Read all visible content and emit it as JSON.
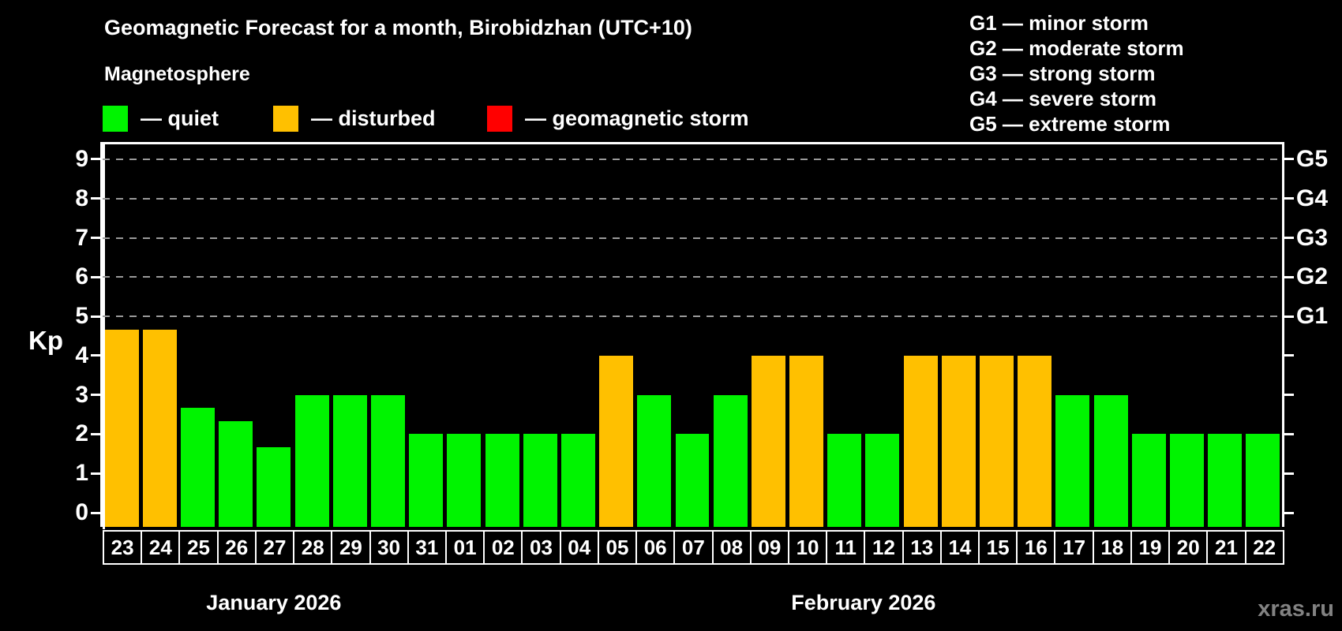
{
  "title": "Geomagnetic Forecast for a month, Birobidzhan (UTC+10)",
  "subtitle": "Magnetosphere",
  "legend": [
    {
      "label": "— quiet",
      "state": "quiet"
    },
    {
      "label": "— disturbed",
      "state": "disturbed"
    },
    {
      "label": "— geomagnetic storm",
      "state": "storm"
    }
  ],
  "g_legend": [
    "G1 — minor storm",
    "G2 — moderate storm",
    "G3 — strong storm",
    "G4 — severe storm",
    "G5 — extreme storm"
  ],
  "watermark": "xras.ru",
  "colors": {
    "quiet": "#00f400",
    "disturbed": "#ffc000",
    "storm": "#ff0000",
    "axis": "#ffffff",
    "grid": "#9a9a9a",
    "background": "#000000",
    "watermark_color": "#828282"
  },
  "chart_data": {
    "type": "bar",
    "title": "Geomagnetic Forecast for a month, Birobidzhan (UTC+10)",
    "subtitle": "Magnetosphere",
    "ylabel": "Kp",
    "ylim": [
      0,
      9
    ],
    "yticks": [
      0,
      1,
      2,
      3,
      4,
      5,
      6,
      7,
      8,
      9
    ],
    "gridlines_at": [
      5,
      6,
      7,
      8,
      9
    ],
    "grid": "horizontal dashed gray lines at Kp 5-9 only",
    "legend_position": "top-left",
    "right_axis": [
      {
        "kp": 5,
        "label": "G1"
      },
      {
        "kp": 6,
        "label": "G2"
      },
      {
        "kp": 7,
        "label": "G3"
      },
      {
        "kp": 8,
        "label": "G4"
      },
      {
        "kp": 9,
        "label": "G5"
      }
    ],
    "months": [
      {
        "label": "January 2026",
        "start_index": 0,
        "count": 9
      },
      {
        "label": "February 2026",
        "start_index": 9,
        "count": 22
      }
    ],
    "bars": [
      {
        "day": "23",
        "month": "January 2026",
        "kp": 4.67,
        "state": "disturbed"
      },
      {
        "day": "24",
        "month": "January 2026",
        "kp": 4.67,
        "state": "disturbed"
      },
      {
        "day": "25",
        "month": "January 2026",
        "kp": 2.67,
        "state": "quiet"
      },
      {
        "day": "26",
        "month": "January 2026",
        "kp": 2.33,
        "state": "quiet"
      },
      {
        "day": "27",
        "month": "January 2026",
        "kp": 1.67,
        "state": "quiet"
      },
      {
        "day": "28",
        "month": "January 2026",
        "kp": 3,
        "state": "quiet"
      },
      {
        "day": "29",
        "month": "January 2026",
        "kp": 3,
        "state": "quiet"
      },
      {
        "day": "30",
        "month": "January 2026",
        "kp": 3,
        "state": "quiet"
      },
      {
        "day": "31",
        "month": "January 2026",
        "kp": 2,
        "state": "quiet"
      },
      {
        "day": "01",
        "month": "February 2026",
        "kp": 2,
        "state": "quiet"
      },
      {
        "day": "02",
        "month": "February 2026",
        "kp": 2,
        "state": "quiet"
      },
      {
        "day": "03",
        "month": "February 2026",
        "kp": 2,
        "state": "quiet"
      },
      {
        "day": "04",
        "month": "February 2026",
        "kp": 2,
        "state": "quiet"
      },
      {
        "day": "05",
        "month": "February 2026",
        "kp": 4,
        "state": "disturbed"
      },
      {
        "day": "06",
        "month": "February 2026",
        "kp": 3,
        "state": "quiet"
      },
      {
        "day": "07",
        "month": "February 2026",
        "kp": 2,
        "state": "quiet"
      },
      {
        "day": "08",
        "month": "February 2026",
        "kp": 3,
        "state": "quiet"
      },
      {
        "day": "09",
        "month": "February 2026",
        "kp": 4,
        "state": "disturbed"
      },
      {
        "day": "10",
        "month": "February 2026",
        "kp": 4,
        "state": "disturbed"
      },
      {
        "day": "11",
        "month": "February 2026",
        "kp": 2,
        "state": "quiet"
      },
      {
        "day": "12",
        "month": "February 2026",
        "kp": 2,
        "state": "quiet"
      },
      {
        "day": "13",
        "month": "February 2026",
        "kp": 4,
        "state": "disturbed"
      },
      {
        "day": "14",
        "month": "February 2026",
        "kp": 4,
        "state": "disturbed"
      },
      {
        "day": "15",
        "month": "February 2026",
        "kp": 4,
        "state": "disturbed"
      },
      {
        "day": "16",
        "month": "February 2026",
        "kp": 4,
        "state": "disturbed"
      },
      {
        "day": "17",
        "month": "February 2026",
        "kp": 3,
        "state": "quiet"
      },
      {
        "day": "18",
        "month": "February 2026",
        "kp": 3,
        "state": "quiet"
      },
      {
        "day": "19",
        "month": "February 2026",
        "kp": 2,
        "state": "quiet"
      },
      {
        "day": "20",
        "month": "February 2026",
        "kp": 2,
        "state": "quiet"
      },
      {
        "day": "21",
        "month": "February 2026",
        "kp": 2,
        "state": "quiet"
      },
      {
        "day": "22",
        "month": "February 2026",
        "kp": 2,
        "state": "quiet"
      }
    ]
  }
}
